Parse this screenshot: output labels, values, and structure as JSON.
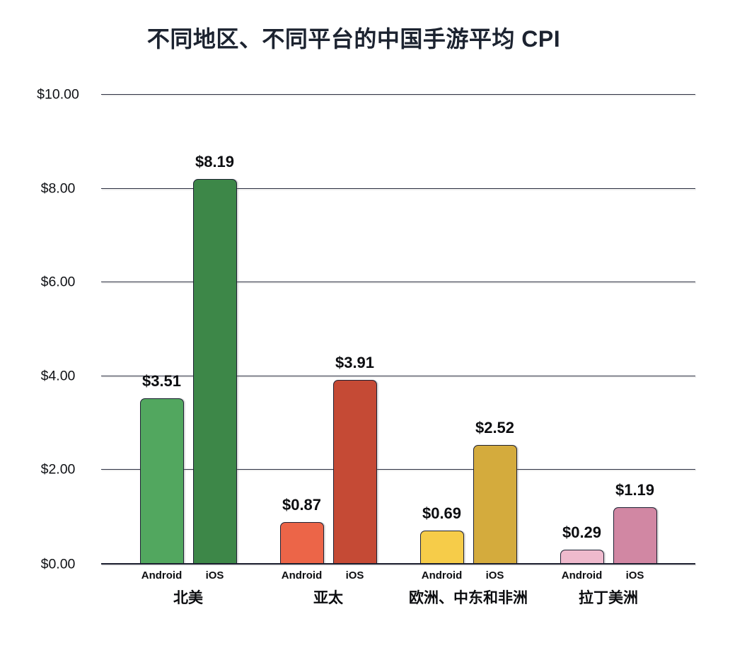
{
  "title": "不同地区、不同平台的中国手游平均 CPI",
  "colors": {
    "background": "#ffffff",
    "gridline": "#2d3142",
    "axis_line": "#1c2030",
    "bar_border": "#1e2133",
    "title_text": "#1c2330",
    "label_text": "#0c0d10"
  },
  "chart_data": {
    "type": "bar",
    "title": "不同地区、不同平台的中国手游平均 CPI",
    "categories": [
      "北美",
      "亚太",
      "欧洲、中东和非洲",
      "拉丁美洲"
    ],
    "series": [
      {
        "name": "Android",
        "values": [
          3.51,
          0.87,
          0.69,
          0.29
        ],
        "value_labels": [
          "$3.51",
          "$0.87",
          "$0.69",
          "$0.29"
        ],
        "colors": [
          "#52a75f",
          "#ec6548",
          "#f6cc49",
          "#efbacd"
        ]
      },
      {
        "name": "iOS",
        "values": [
          8.19,
          3.91,
          2.52,
          1.19
        ],
        "value_labels": [
          "$8.19",
          "$3.91",
          "$2.52",
          "$1.19"
        ],
        "colors": [
          "#3d8748",
          "#c54a35",
          "#d4ab3d",
          "#d187a3"
        ]
      }
    ],
    "xlabel": "",
    "ylabel": "",
    "ylim": [
      0,
      10
    ],
    "y_ticks": [
      {
        "label": "$10.00",
        "value": 10
      },
      {
        "label": "$8.00",
        "value": 8
      },
      {
        "label": "$6.00",
        "value": 6
      },
      {
        "label": "$4.00",
        "value": 4
      },
      {
        "label": "$2.00",
        "value": 2
      },
      {
        "label": "$0.00",
        "value": 0
      }
    ],
    "grid": true,
    "legend_position": "none",
    "currency": "$"
  }
}
